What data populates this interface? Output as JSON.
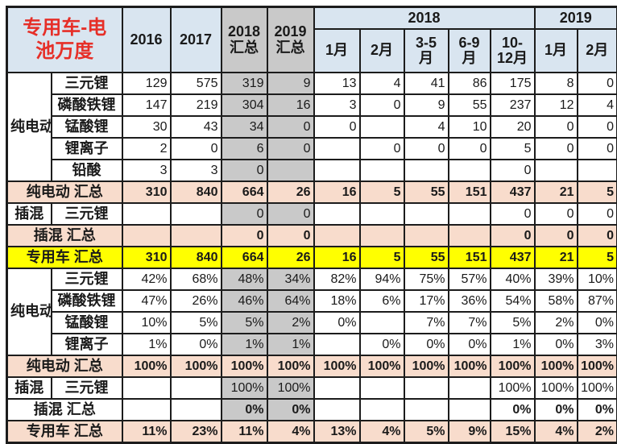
{
  "chart_data": {
    "type": "table",
    "title": "专用车-电池万度",
    "header": {
      "corner": "专用车-电\n池万度",
      "years": [
        "2016",
        "2017"
      ],
      "sums": [
        "2018\n汇总",
        "2019\n汇总"
      ],
      "groups": [
        {
          "label": "2018",
          "months": [
            "1月",
            "2月",
            "3-5\n月",
            "6-9\n月",
            "10-\n12月"
          ]
        },
        {
          "label": "2019",
          "months": [
            "1月",
            "2月"
          ]
        }
      ]
    },
    "columns": [
      "2016",
      "2017",
      "2018汇总",
      "2019汇总",
      "2018-1月",
      "2018-2月",
      "2018-3-5月",
      "2018-6-9月",
      "2018-10-12月",
      "2019-1月",
      "2019-2月"
    ],
    "rows": [
      {
        "group": {
          "label": "纯电动",
          "rows": 5
        },
        "label": "三元锂",
        "bg": "",
        "bold": false,
        "values": [
          "129",
          "575",
          "319",
          "9",
          "13",
          "4",
          "41",
          "86",
          "175",
          "8",
          "0"
        ]
      },
      {
        "label": "磷酸铁锂",
        "bg": "",
        "bold": false,
        "values": [
          "147",
          "219",
          "304",
          "16",
          "3",
          "0",
          "9",
          "55",
          "237",
          "12",
          "4"
        ]
      },
      {
        "label": "锰酸锂",
        "bg": "",
        "bold": false,
        "values": [
          "30",
          "43",
          "34",
          "0",
          "0",
          "",
          "4",
          "10",
          "20",
          "0",
          "0"
        ]
      },
      {
        "label": "锂离子",
        "bg": "",
        "bold": false,
        "values": [
          "2",
          "0",
          "6",
          "0",
          "",
          "0",
          "0",
          "0",
          "5",
          "0",
          "0"
        ]
      },
      {
        "label": "铅酸",
        "bg": "",
        "bold": false,
        "values": [
          "3",
          "3",
          "0",
          "",
          "",
          "",
          "",
          "",
          "0",
          "",
          ""
        ]
      },
      {
        "merged": "纯电动 汇总",
        "bg": "pink",
        "bold": true,
        "values": [
          "310",
          "840",
          "664",
          "26",
          "16",
          "5",
          "55",
          "151",
          "437",
          "21",
          "5"
        ]
      },
      {
        "left": "插混",
        "label": "三元锂",
        "bg": "",
        "bold": false,
        "values": [
          "",
          "",
          "0",
          "0",
          "",
          "",
          "",
          "",
          "0",
          "0",
          "0"
        ]
      },
      {
        "merged": "插混 汇总",
        "bg": "pink",
        "bold": true,
        "values": [
          "",
          "",
          "0",
          "0",
          "",
          "",
          "",
          "",
          "0",
          "0",
          "0"
        ]
      },
      {
        "merged": "专用车 汇总",
        "bg": "yellow",
        "bold": true,
        "values": [
          "310",
          "840",
          "664",
          "26",
          "16",
          "5",
          "55",
          "151",
          "437",
          "21",
          "5"
        ]
      },
      {
        "group": {
          "label": "纯电动",
          "rows": 4
        },
        "label": "三元锂",
        "bg": "",
        "bold": false,
        "values": [
          "42%",
          "68%",
          "48%",
          "34%",
          "82%",
          "94%",
          "75%",
          "57%",
          "40%",
          "39%",
          "10%"
        ]
      },
      {
        "label": "磷酸铁锂",
        "bg": "",
        "bold": false,
        "values": [
          "47%",
          "26%",
          "46%",
          "64%",
          "18%",
          "6%",
          "17%",
          "36%",
          "54%",
          "58%",
          "87%"
        ]
      },
      {
        "label": "锰酸锂",
        "bg": "",
        "bold": false,
        "values": [
          "10%",
          "5%",
          "5%",
          "2%",
          "0%",
          "",
          "7%",
          "7%",
          "5%",
          "2%",
          "0%"
        ]
      },
      {
        "label": "锂离子",
        "bg": "",
        "bold": false,
        "values": [
          "1%",
          "0%",
          "1%",
          "1%",
          "",
          "0%",
          "0%",
          "0%",
          "1%",
          "0%",
          "3%"
        ]
      },
      {
        "merged": "纯电动 汇总",
        "bg": "pink",
        "bold": true,
        "values": [
          "100%",
          "100%",
          "100%",
          "100%",
          "100%",
          "100%",
          "100%",
          "100%",
          "100%",
          "100%",
          "100%"
        ]
      },
      {
        "left": "插混",
        "label": "三元锂",
        "bg": "",
        "bold": false,
        "values": [
          "",
          "",
          "100%",
          "100%",
          "",
          "",
          "",
          "",
          "100%",
          "100%",
          "100%"
        ]
      },
      {
        "merged": "插混 汇总",
        "bg": "",
        "bold": true,
        "values": [
          "",
          "",
          "0%",
          "0%",
          "",
          "",
          "",
          "",
          "0%",
          "0%",
          "0%"
        ]
      },
      {
        "merged": "专用车 汇总",
        "bg": "pink",
        "bold": true,
        "values": [
          "11%",
          "23%",
          "11%",
          "4%",
          "13%",
          "4%",
          "5%",
          "9%",
          "15%",
          "4%",
          "2%"
        ]
      }
    ],
    "colors": {
      "header_blue": "#d9e5f0",
      "sum_column_gray": "#c9c9c9",
      "summary_pink": "#f8dccc",
      "total_yellow": "#ffff00",
      "title_red": "#e62f28",
      "border": "#1c1c1c"
    },
    "gray_value_columns": [
      2,
      3
    ]
  }
}
